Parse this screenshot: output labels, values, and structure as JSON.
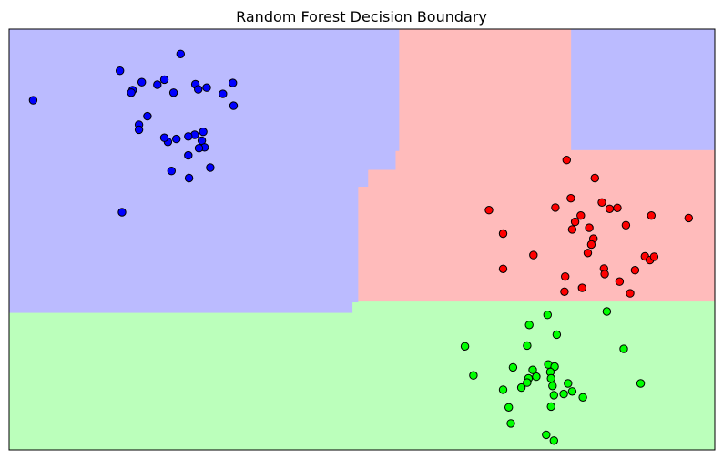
{
  "chart_data": {
    "type": "scatter",
    "title": "Random Forest Decision Boundary",
    "xlabel": "",
    "ylabel": "",
    "xlim": [
      0,
      100
    ],
    "ylim": [
      0,
      100
    ],
    "axes_ticks": "none",
    "grid": false,
    "legend": "none",
    "regions": [
      {
        "class": "blue",
        "color": "#bbbbff",
        "polygon": [
          [
            0,
            100
          ],
          [
            55.3,
            100
          ],
          [
            55.3,
            71.0
          ],
          [
            54.8,
            71.0
          ],
          [
            54.8,
            66.5
          ],
          [
            50.9,
            66.5
          ],
          [
            50.9,
            62.5
          ],
          [
            49.5,
            62.5
          ],
          [
            49.5,
            35.0
          ],
          [
            48.7,
            35.0
          ],
          [
            48.7,
            32.5
          ],
          [
            0,
            32.5
          ]
        ]
      },
      {
        "class": "blue",
        "color": "#bbbbff",
        "polygon": [
          [
            79.6,
            100
          ],
          [
            100,
            100
          ],
          [
            100,
            71.2
          ],
          [
            79.6,
            71.2
          ]
        ]
      },
      {
        "class": "red",
        "color": "#ffbbbb",
        "polygon": [
          [
            55.3,
            100
          ],
          [
            79.6,
            100
          ],
          [
            79.6,
            71.2
          ],
          [
            100,
            71.2
          ],
          [
            100,
            35.2
          ],
          [
            49.5,
            35.2
          ],
          [
            49.5,
            62.5
          ],
          [
            50.9,
            62.5
          ],
          [
            50.9,
            66.5
          ],
          [
            54.8,
            66.5
          ],
          [
            54.8,
            71.0
          ],
          [
            55.3,
            71.0
          ]
        ]
      },
      {
        "class": "green",
        "color": "#bbffbb",
        "polygon": [
          [
            0,
            32.5
          ],
          [
            48.7,
            32.5
          ],
          [
            48.7,
            35.0
          ],
          [
            49.5,
            35.0
          ],
          [
            49.5,
            35.2
          ],
          [
            100,
            35.2
          ],
          [
            100,
            0
          ],
          [
            0,
            0
          ]
        ]
      }
    ],
    "series": [
      {
        "class": "blue",
        "color": "#0000ff",
        "points": [
          [
            24.3,
            94.1
          ],
          [
            15.7,
            90.1
          ],
          [
            18.8,
            87.4
          ],
          [
            22.0,
            88.0
          ],
          [
            21.0,
            86.8
          ],
          [
            17.5,
            85.5
          ],
          [
            17.3,
            84.9
          ],
          [
            23.3,
            84.9
          ],
          [
            26.4,
            86.9
          ],
          [
            26.8,
            85.7
          ],
          [
            28.0,
            86.1
          ],
          [
            30.3,
            84.6
          ],
          [
            31.7,
            87.2
          ],
          [
            31.8,
            81.8
          ],
          [
            3.4,
            83.1
          ],
          [
            19.6,
            79.3
          ],
          [
            18.4,
            77.3
          ],
          [
            18.4,
            76.1
          ],
          [
            27.5,
            75.6
          ],
          [
            26.3,
            74.9
          ],
          [
            25.4,
            74.5
          ],
          [
            23.7,
            73.9
          ],
          [
            22.5,
            73.2
          ],
          [
            22.0,
            74.2
          ],
          [
            27.3,
            73.5
          ],
          [
            27.7,
            71.9
          ],
          [
            26.9,
            71.7
          ],
          [
            25.4,
            70.0
          ],
          [
            28.5,
            67.1
          ],
          [
            23.0,
            66.3
          ],
          [
            25.5,
            64.6
          ],
          [
            16.0,
            56.5
          ]
        ]
      },
      {
        "class": "red",
        "color": "#ff0000",
        "points": [
          [
            79.0,
            68.9
          ],
          [
            83.0,
            64.6
          ],
          [
            79.6,
            59.8
          ],
          [
            77.4,
            57.6
          ],
          [
            84.0,
            58.8
          ],
          [
            85.1,
            57.3
          ],
          [
            86.2,
            57.5
          ],
          [
            81.0,
            55.7
          ],
          [
            91.0,
            55.7
          ],
          [
            96.3,
            55.1
          ],
          [
            68.0,
            57.0
          ],
          [
            80.2,
            54.2
          ],
          [
            79.8,
            52.4
          ],
          [
            82.2,
            52.8
          ],
          [
            87.4,
            53.4
          ],
          [
            70.0,
            51.4
          ],
          [
            82.8,
            50.2
          ],
          [
            82.5,
            48.8
          ],
          [
            82.0,
            46.8
          ],
          [
            74.3,
            46.3
          ],
          [
            90.1,
            46.0
          ],
          [
            90.8,
            45.1
          ],
          [
            91.4,
            45.9
          ],
          [
            70.0,
            43.0
          ],
          [
            84.3,
            43.1
          ],
          [
            84.4,
            41.8
          ],
          [
            88.7,
            42.7
          ],
          [
            78.8,
            41.2
          ],
          [
            86.5,
            40.0
          ],
          [
            81.2,
            38.5
          ],
          [
            78.7,
            37.6
          ],
          [
            88.0,
            37.2
          ]
        ]
      },
      {
        "class": "green",
        "color": "#00ff00",
        "points": [
          [
            76.3,
            32.1
          ],
          [
            84.7,
            32.9
          ],
          [
            73.7,
            29.7
          ],
          [
            77.6,
            27.4
          ],
          [
            64.6,
            24.6
          ],
          [
            73.4,
            24.8
          ],
          [
            87.1,
            24.0
          ],
          [
            76.4,
            20.3
          ],
          [
            71.4,
            19.6
          ],
          [
            77.3,
            19.8
          ],
          [
            74.2,
            19.0
          ],
          [
            76.7,
            18.5
          ],
          [
            65.8,
            17.7
          ],
          [
            73.6,
            17.0
          ],
          [
            74.7,
            17.4
          ],
          [
            76.8,
            17.0
          ],
          [
            73.4,
            16.0
          ],
          [
            79.2,
            15.8
          ],
          [
            77.0,
            15.2
          ],
          [
            89.5,
            15.8
          ],
          [
            72.6,
            14.8
          ],
          [
            70.0,
            14.3
          ],
          [
            79.8,
            13.9
          ],
          [
            78.6,
            13.3
          ],
          [
            77.2,
            13.0
          ],
          [
            81.3,
            12.5
          ],
          [
            70.8,
            10.1
          ],
          [
            76.8,
            10.3
          ],
          [
            71.1,
            6.3
          ],
          [
            76.1,
            3.6
          ],
          [
            77.2,
            2.2
          ]
        ]
      }
    ]
  }
}
